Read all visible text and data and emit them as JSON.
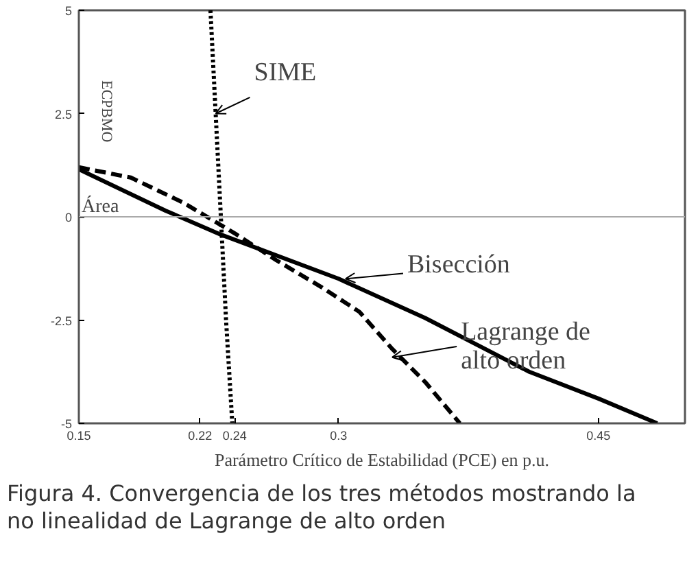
{
  "chart_data": {
    "type": "line",
    "title": "Figura 4. Convergencia de los tres métodos mostrando la no linealidad de Lagrange de alto orden",
    "xlabel": "Parámetro Crítico de Estabilidad (PCE) en p.u.",
    "ylabel": "Área",
    "subtitle": "ECPBMO",
    "xlim": [
      0.15,
      0.5
    ],
    "ylim": [
      -5,
      5
    ],
    "xticks": [
      0.15,
      0.22,
      0.24,
      0.3,
      0.45
    ],
    "yticks": [
      -5,
      -2.5,
      0,
      2.5,
      5
    ],
    "grid": false,
    "marker": "none",
    "ref_lines": [
      {
        "axis": "y",
        "value": 0,
        "color": "#aaaaaa"
      }
    ],
    "series": [
      {
        "color": "#000000",
        "line_style": "solid",
        "x": [
          0.15,
          0.2,
          0.232,
          0.3,
          0.35,
          0.41,
          0.45,
          0.484
        ],
        "values": [
          1.15,
          0.15,
          -0.43,
          -1.5,
          -2.45,
          -3.75,
          -4.4,
          -5
        ]
      },
      {
        "color": "#000000",
        "line_style": "dashed",
        "x": [
          0.15,
          0.18,
          0.21,
          0.24,
          0.264,
          0.29,
          0.312,
          0.331,
          0.35,
          0.37
        ],
        "values": [
          1.2,
          0.95,
          0.35,
          -0.4,
          -1.05,
          -1.7,
          -2.3,
          -3.2,
          -4.0,
          -5
        ]
      },
      {
        "color": "#000000",
        "line_style": "dotted",
        "x": [
          0.226,
          0.229,
          0.232,
          0.235,
          0.2386
        ],
        "values": [
          5,
          2.5,
          0,
          -2.5,
          -5
        ]
      }
    ],
    "annotations": [
      {
        "text": "SIME",
        "x": 0.229,
        "y": 2.5
      },
      {
        "text": "Bisección",
        "x": 0.304,
        "y": -1.5
      },
      {
        "text": "Lagrange de alto orden",
        "x": 0.331,
        "y": -3.4
      }
    ]
  }
}
